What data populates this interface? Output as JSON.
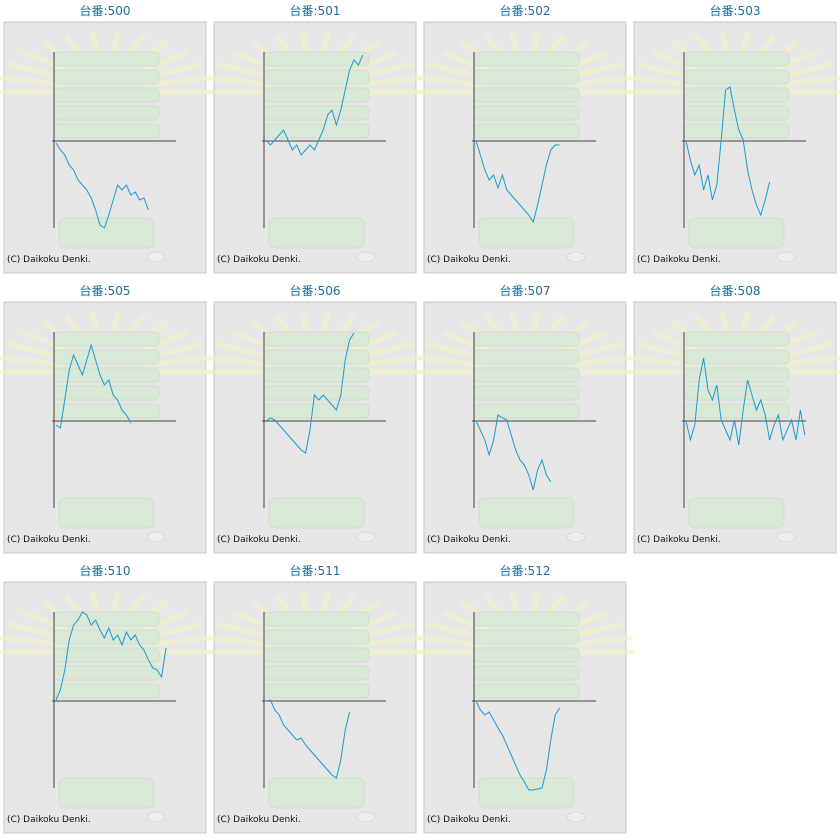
{
  "chart_data": [
    {
      "type": "line",
      "title": "台番:500",
      "credit": "(C) Daikoku Denki.",
      "color": "#1a9bd0",
      "values": [
        -2,
        -9,
        -14,
        -24,
        -29,
        -39,
        -44,
        -49,
        -57,
        -69,
        -84,
        -87,
        -74,
        -59,
        -44,
        -49,
        -44,
        -54,
        -51,
        -59,
        -57,
        -69
      ]
    },
    {
      "type": "line",
      "title": "台番:501",
      "credit": "(C) Daikoku Denki.",
      "color": "#1a9bd0",
      "values": [
        1,
        -4,
        1,
        6,
        11,
        1,
        -9,
        -4,
        -14,
        -9,
        -4,
        -9,
        1,
        11,
        26,
        31,
        16,
        31,
        51,
        71,
        81,
        76,
        86
      ]
    },
    {
      "type": "line",
      "title": "台番:502",
      "credit": "(C) Daikoku Denki.",
      "color": "#1a9bd0",
      "values": [
        0,
        -14,
        -29,
        -39,
        -34,
        -47,
        -34,
        -49,
        -54,
        -59,
        -64,
        -69,
        -74,
        -81,
        -64,
        -44,
        -24,
        -9,
        -4,
        -4
      ]
    },
    {
      "type": "line",
      "title": "台番:503",
      "credit": "(C) Daikoku Denki.",
      "color": "#1a9bd0",
      "values": [
        0,
        -19,
        -34,
        -24,
        -49,
        -34,
        -59,
        -44,
        1,
        51,
        54,
        31,
        11,
        1,
        -29,
        -49,
        -64,
        -74,
        -59,
        -41
      ]
    },
    {
      "type": "line",
      "title": "台番:505",
      "credit": "(C) Daikoku Denki.",
      "color": "#1a9bd0",
      "values": [
        -4,
        -7,
        21,
        51,
        66,
        56,
        46,
        61,
        76,
        61,
        46,
        36,
        41,
        26,
        21,
        11,
        6,
        -2
      ]
    },
    {
      "type": "line",
      "title": "台番:506",
      "credit": "(C) Daikoku Denki.",
      "color": "#1a9bd0",
      "values": [
        0,
        3,
        1,
        -4,
        -9,
        -14,
        -19,
        -24,
        -29,
        -32,
        -9,
        26,
        21,
        26,
        21,
        16,
        11,
        26,
        61,
        81,
        88
      ]
    },
    {
      "type": "line",
      "title": "台番:507",
      "credit": "(C) Daikoku Denki.",
      "color": "#1a9bd0",
      "values": [
        0,
        -9,
        -19,
        -34,
        -19,
        6,
        3,
        1,
        -14,
        -29,
        -39,
        -44,
        -54,
        -69,
        -49,
        -39,
        -54,
        -61
      ]
    },
    {
      "type": "line",
      "title": "台番:508",
      "credit": "(C) Daikoku Denki.",
      "color": "#1a9bd0",
      "values": [
        0,
        -19,
        -4,
        41,
        63,
        31,
        21,
        36,
        1,
        -9,
        -19,
        1,
        -24,
        11,
        41,
        26,
        11,
        21,
        6,
        -19,
        -4,
        6,
        -19,
        -9,
        1,
        -19,
        11,
        -14
      ]
    },
    {
      "type": "line",
      "title": "台番:510",
      "credit": "(C) Daikoku Denki.",
      "color": "#1a9bd0",
      "values": [
        1,
        11,
        31,
        61,
        76,
        81,
        89,
        86,
        76,
        81,
        71,
        63,
        73,
        61,
        66,
        56,
        69,
        61,
        66,
        56,
        51,
        41,
        33,
        31,
        24,
        53
      ]
    },
    {
      "type": "line",
      "title": "台番:511",
      "credit": "(C) Daikoku Denki.",
      "color": "#1a9bd0",
      "values": [
        0,
        1,
        -9,
        -14,
        -24,
        -29,
        -34,
        -39,
        -37,
        -44,
        -49,
        -54,
        -59,
        -64,
        -69,
        -74,
        -77,
        -59,
        -29,
        -11
      ]
    },
    {
      "type": "line",
      "title": "台番:512",
      "credit": "(C) Daikoku Denki.",
      "color": "#1a9bd0",
      "values": [
        0,
        -9,
        -14,
        -11,
        -19,
        -27,
        -34,
        -44,
        -54,
        -64,
        -74,
        -81,
        -89,
        -89,
        -88,
        -87,
        -69,
        -39,
        -14,
        -7
      ]
    }
  ]
}
